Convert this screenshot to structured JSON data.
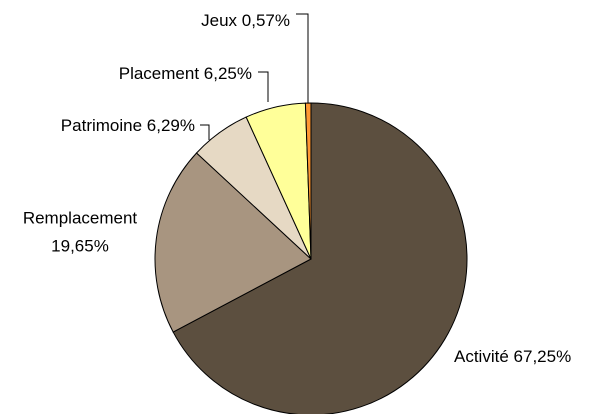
{
  "chart_data": {
    "type": "pie",
    "categories": [
      "Activité",
      "Remplacement",
      "Patrimoine",
      "Placement",
      "Jeux"
    ],
    "values": [
      67.25,
      19.65,
      6.29,
      6.25,
      0.57
    ],
    "value_labels": [
      "67,25%",
      "19,65%",
      "6,29%",
      "6,25%",
      "0,57%"
    ],
    "colors": [
      "#5c4f3f",
      "#a89580",
      "#e6d9c4",
      "#ffff99",
      "#ff9933"
    ]
  }
}
